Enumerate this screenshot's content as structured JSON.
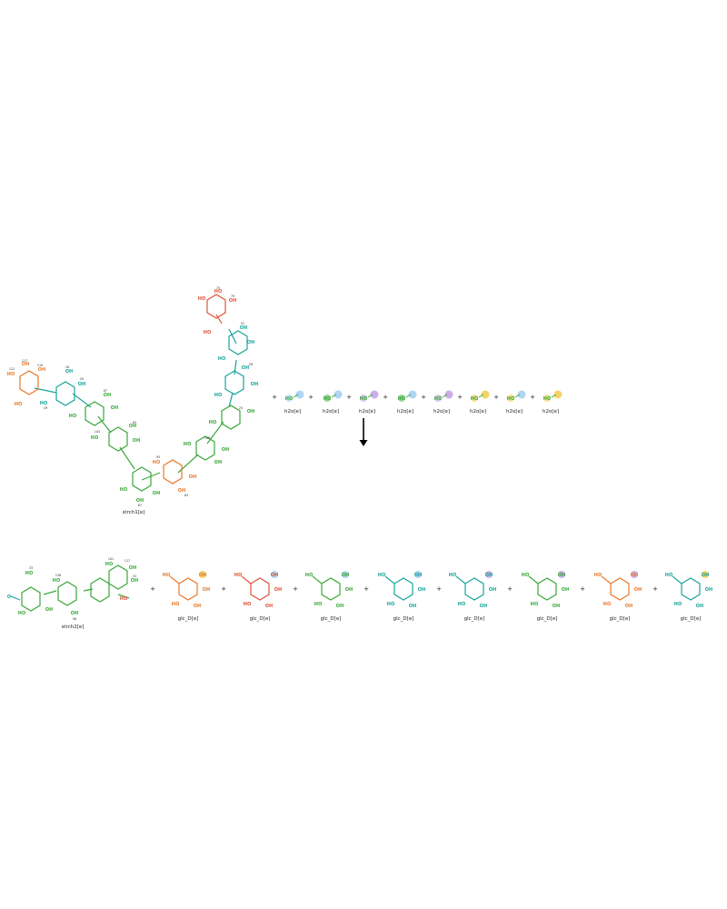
{
  "reaction": {
    "reactants": [
      {
        "label": "strch1[e]"
      },
      {
        "label": "h2o[e]"
      },
      {
        "label": "h2o[e]"
      },
      {
        "label": "h2o[e]"
      },
      {
        "label": "h2o[e]"
      },
      {
        "label": "h2o[e]"
      },
      {
        "label": "h2o[e]"
      },
      {
        "label": "h2o[e]"
      },
      {
        "label": "h2o[e]"
      }
    ],
    "products": [
      {
        "label": "strch2[e]"
      },
      {
        "label": "glc_D[e]"
      },
      {
        "label": "glc_D[e]"
      },
      {
        "label": "glc_D[e]"
      },
      {
        "label": "glc_D[e]"
      },
      {
        "label": "glc_D[e]"
      },
      {
        "label": "glc_D[e]"
      },
      {
        "label": "glc_D[e]"
      },
      {
        "label": "glc_D[e]"
      }
    ],
    "plus_sign": "+",
    "atom_labels": {
      "hydroxyl": "HO",
      "hydroxyl_r": "OH",
      "oxygen": "O"
    }
  },
  "colors": {
    "orange": "#e8792b",
    "red": "#e0533a",
    "green": "#3aa83a",
    "teal": "#1aa59a",
    "blue": "#8fc3ee",
    "violet": "#b58be0",
    "yellow": "#f0c22a",
    "arrow": "#000000"
  }
}
